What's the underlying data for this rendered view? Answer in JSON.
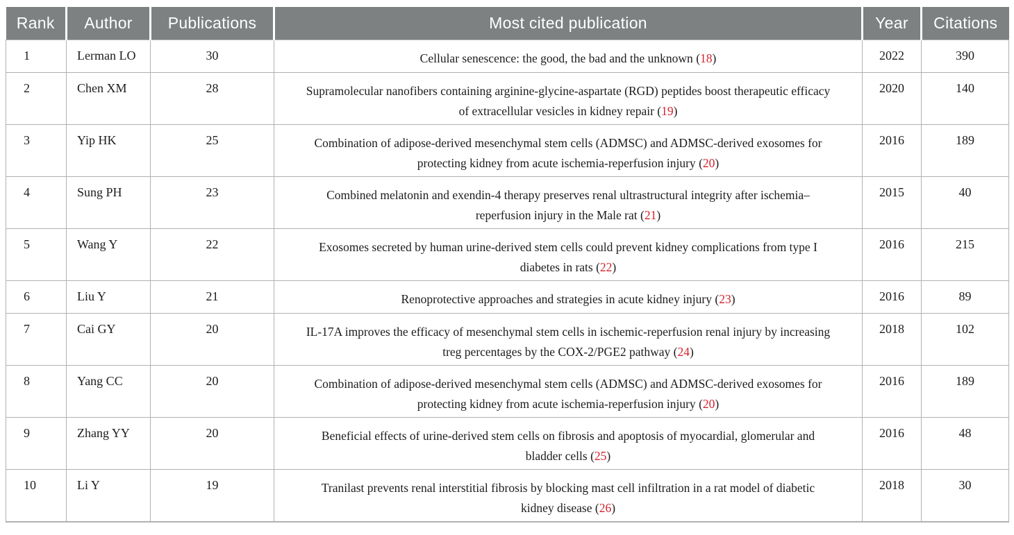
{
  "colors": {
    "header_background": "#7e8182",
    "header_text": "#ffffff",
    "body_text": "#1c1c1c",
    "border": "#b1b1b4",
    "citation_reference_red": "#d5232e"
  },
  "table": {
    "headers": [
      "Rank",
      "Author",
      "Publications",
      "Most cited publication",
      "Year",
      "Citations"
    ],
    "ref_brackets": {
      "open": "(",
      "close": ")"
    },
    "rows": [
      {
        "rank": "1",
        "author": "Lerman LO",
        "publications": "30",
        "title": "Cellular senescence: the good, the bad and the unknown",
        "ref": "18",
        "year": "2022",
        "citations": "390"
      },
      {
        "rank": "2",
        "author": "Chen XM",
        "publications": "28",
        "title": "Supramolecular nanofibers containing arginine-glycine-aspartate (RGD) peptides boost therapeutic efficacy of extracellular vesicles in kidney repair",
        "ref": "19",
        "year": "2020",
        "citations": "140"
      },
      {
        "rank": "3",
        "author": "Yip HK",
        "publications": "25",
        "title": "Combination of adipose-derived mesenchymal stem cells (ADMSC) and ADMSC-derived exosomes for protecting kidney from acute ischemia-reperfusion injury",
        "ref": "20",
        "year": "2016",
        "citations": "189"
      },
      {
        "rank": "4",
        "author": "Sung PH",
        "publications": "23",
        "title": "Combined melatonin and exendin-4 therapy preserves renal ultrastructural integrity after ischemia–reperfusion injury in the Male rat",
        "ref": "21",
        "year": "2015",
        "citations": "40"
      },
      {
        "rank": "5",
        "author": "Wang Y",
        "publications": "22",
        "title": "Exosomes secreted by human urine-derived stem cells could prevent kidney complications from type I diabetes in rats",
        "ref": "22",
        "year": "2016",
        "citations": "215"
      },
      {
        "rank": "6",
        "author": "Liu Y",
        "publications": "21",
        "title": "Renoprotective approaches and strategies in acute kidney injury",
        "ref": "23",
        "year": "2016",
        "citations": "89"
      },
      {
        "rank": "7",
        "author": "Cai GY",
        "publications": "20",
        "title": "IL-17A improves the efficacy of mesenchymal stem cells in ischemic-reperfusion renal injury by increasing treg percentages by the COX-2/PGE2 pathway",
        "ref": "24",
        "year": "2018",
        "citations": "102"
      },
      {
        "rank": "8",
        "author": "Yang CC",
        "publications": "20",
        "title": "Combination of adipose-derived mesenchymal stem cells (ADMSC) and ADMSC-derived exosomes for protecting kidney from acute ischemia-reperfusion injury",
        "ref": "20",
        "year": "2016",
        "citations": "189"
      },
      {
        "rank": "9",
        "author": "Zhang YY",
        "publications": "20",
        "title": "Beneficial effects of urine-derived stem cells on fibrosis and apoptosis of myocardial, glomerular and bladder cells",
        "ref": "25",
        "year": "2016",
        "citations": "48"
      },
      {
        "rank": "10",
        "author": "Li Y",
        "publications": "19",
        "title": "Tranilast prevents renal interstitial fibrosis by blocking mast cell infiltration in a rat model of diabetic kidney disease",
        "ref": "26",
        "year": "2018",
        "citations": "30"
      }
    ]
  }
}
